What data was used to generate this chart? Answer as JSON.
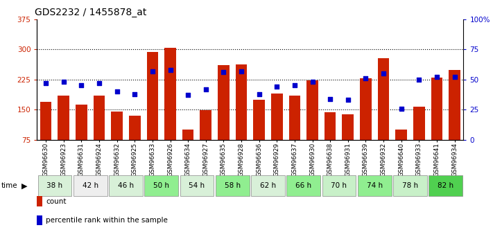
{
  "title": "GDS2232 / 1455878_at",
  "samples": [
    "GSM96630",
    "GSM96923",
    "GSM96631",
    "GSM96924",
    "GSM96632",
    "GSM96925",
    "GSM96633",
    "GSM96926",
    "GSM96634",
    "GSM96927",
    "GSM96635",
    "GSM96928",
    "GSM96636",
    "GSM96929",
    "GSM96637",
    "GSM96930",
    "GSM96638",
    "GSM96931",
    "GSM96639",
    "GSM96932",
    "GSM96640",
    "GSM96933",
    "GSM96641",
    "GSM96934"
  ],
  "counts": [
    170,
    185,
    163,
    185,
    145,
    135,
    293,
    303,
    100,
    148,
    260,
    263,
    175,
    190,
    185,
    222,
    143,
    138,
    228,
    278,
    100,
    158,
    230,
    248
  ],
  "percentile": [
    47,
    48,
    45,
    47,
    40,
    38,
    57,
    58,
    37,
    42,
    56,
    57,
    38,
    44,
    45,
    48,
    34,
    33,
    51,
    55,
    26,
    50,
    52,
    52
  ],
  "time_groups": [
    {
      "label": "38 h",
      "start": 0,
      "end": 2,
      "color": "#d8f0d8"
    },
    {
      "label": "42 h",
      "start": 2,
      "end": 4,
      "color": "#eeeeee"
    },
    {
      "label": "46 h",
      "start": 4,
      "end": 6,
      "color": "#d8f0d8"
    },
    {
      "label": "50 h",
      "start": 6,
      "end": 8,
      "color": "#90ee90"
    },
    {
      "label": "54 h",
      "start": 8,
      "end": 10,
      "color": "#d8f0d8"
    },
    {
      "label": "58 h",
      "start": 10,
      "end": 12,
      "color": "#90ee90"
    },
    {
      "label": "62 h",
      "start": 12,
      "end": 14,
      "color": "#d8f0d8"
    },
    {
      "label": "66 h",
      "start": 14,
      "end": 16,
      "color": "#90ee90"
    },
    {
      "label": "70 h",
      "start": 16,
      "end": 18,
      "color": "#c8f0c8"
    },
    {
      "label": "74 h",
      "start": 18,
      "end": 20,
      "color": "#90ee90"
    },
    {
      "label": "78 h",
      "start": 20,
      "end": 22,
      "color": "#c8f0c8"
    },
    {
      "label": "82 h",
      "start": 22,
      "end": 24,
      "color": "#50d050"
    }
  ],
  "ylim_left": [
    75,
    375
  ],
  "ylim_right": [
    0,
    100
  ],
  "yticks_left": [
    75,
    150,
    225,
    300,
    375
  ],
  "yticks_right": [
    0,
    25,
    50,
    75,
    100
  ],
  "bar_color": "#cc2200",
  "dot_color": "#0000cc",
  "bar_width": 0.65,
  "title_fontsize": 10,
  "tick_fontsize": 7.5,
  "sample_fontsize": 6.5
}
